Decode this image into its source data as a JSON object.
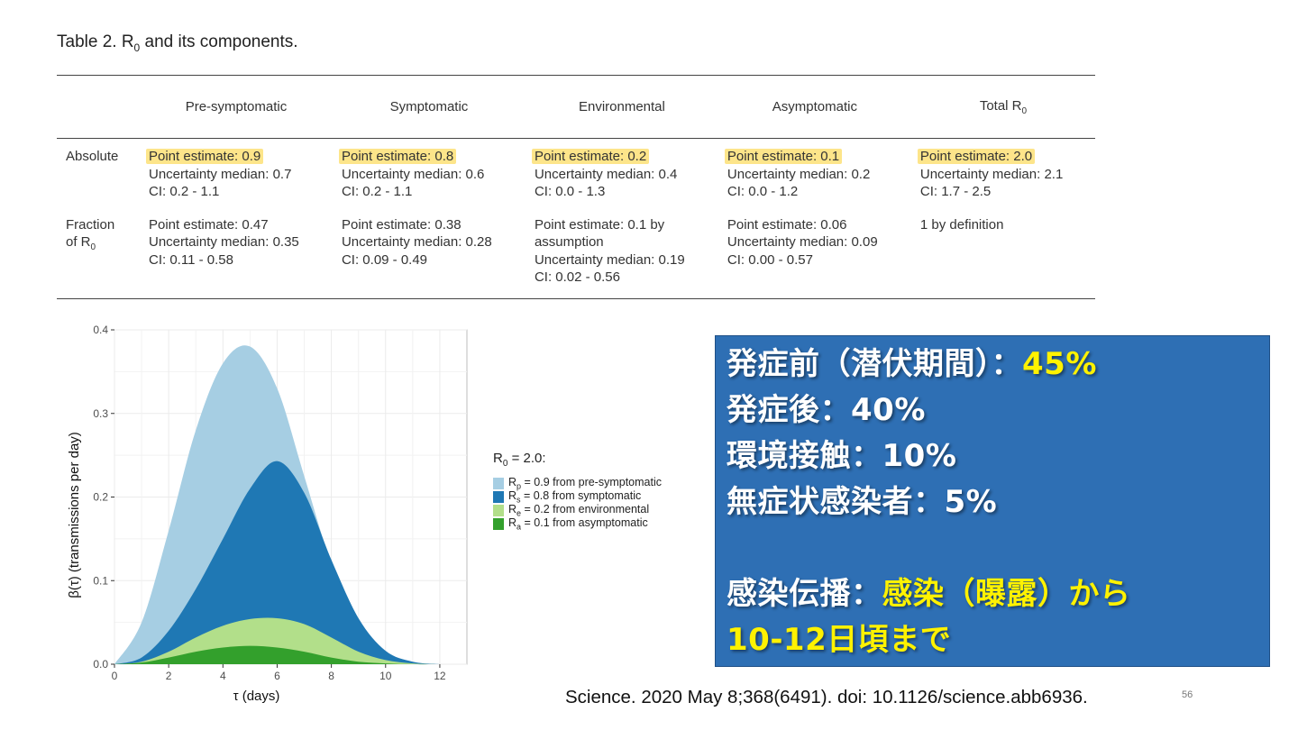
{
  "table": {
    "title_prefix": "Table 2. R",
    "title_sub": "0",
    "title_suffix": " and its components.",
    "headers": [
      "Pre-symptomatic",
      "Symptomatic",
      "Environmental",
      "Asymptomatic",
      "Total R"
    ],
    "header_total_sub": "0",
    "row_absolute_label": "Absolute",
    "row_fraction_label_1": "Fraction",
    "row_fraction_label_2a": "of R",
    "row_fraction_label_2b": "0",
    "absolute": [
      {
        "point": "Point estimate: 0.9",
        "median": "Uncertainty median: 0.7",
        "ci": "CI: 0.2 - 1.1"
      },
      {
        "point": "Point estimate: 0.8",
        "median": "Uncertainty median: 0.6",
        "ci": "CI: 0.2 - 1.1"
      },
      {
        "point": "Point estimate: 0.2",
        "median": "Uncertainty median: 0.4",
        "ci": "CI: 0.0 - 1.3"
      },
      {
        "point": "Point estimate: 0.1",
        "median": "Uncertainty median: 0.2",
        "ci": "CI: 0.0 - 1.2"
      },
      {
        "point": "Point estimate: 2.0",
        "median": "Uncertainty median: 2.1",
        "ci": "CI: 1.7 - 2.5"
      }
    ],
    "fraction": [
      [
        "Point estimate: 0.47",
        "Uncertainty median: 0.35",
        "CI: 0.11 - 0.58"
      ],
      [
        "Point estimate: 0.38",
        "Uncertainty median: 0.28",
        "CI: 0.09 - 0.49"
      ],
      [
        "Point estimate: 0.1 by",
        "assumption",
        "Uncertainty median: 0.19",
        "CI: 0.02 - 0.56"
      ],
      [
        "Point estimate: 0.06",
        "Uncertainty median: 0.09",
        "CI: 0.00 - 0.57"
      ],
      [
        "1 by definition"
      ]
    ],
    "highlight_color": "#fde58a"
  },
  "chart_data": {
    "type": "area",
    "xlabel": "τ (days)",
    "ylabel": "β(τ)  (transmissions per day)",
    "xlim": [
      0,
      13
    ],
    "ylim": [
      0,
      0.4
    ],
    "xticks": [
      0,
      2,
      4,
      6,
      8,
      10,
      12
    ],
    "yticks": [
      0.0,
      0.1,
      0.2,
      0.3,
      0.4
    ],
    "ytick_labels": [
      "0.0",
      "0.1",
      "0.2",
      "0.3",
      "0.4"
    ],
    "grid": true,
    "x": [
      0,
      1,
      2,
      3,
      4,
      5,
      6,
      7,
      8,
      9,
      10,
      11,
      12
    ],
    "series": [
      {
        "name": "R_a",
        "label_sub": "a",
        "label_text": " = 0.1 from asymptomatic",
        "color": "#33a02c",
        "cumulative": [
          0,
          0.002,
          0.008,
          0.015,
          0.02,
          0.022,
          0.02,
          0.015,
          0.008,
          0.003,
          0.001,
          0,
          0
        ]
      },
      {
        "name": "R_e",
        "label_sub": "e",
        "label_text": " = 0.2 from environmental",
        "color": "#b2df8a",
        "cumulative": [
          0,
          0.003,
          0.015,
          0.032,
          0.046,
          0.054,
          0.055,
          0.048,
          0.032,
          0.015,
          0.005,
          0.001,
          0
        ]
      },
      {
        "name": "R_s",
        "label_sub": "s",
        "label_text": " = 0.8 from symptomatic",
        "color": "#1f78b4",
        "cumulative": [
          0,
          0.008,
          0.04,
          0.09,
          0.15,
          0.21,
          0.243,
          0.205,
          0.125,
          0.055,
          0.016,
          0.003,
          0
        ]
      },
      {
        "name": "R_p",
        "label_sub": "p",
        "label_text": " = 0.9 from pre-symptomatic",
        "color": "#a6cee3",
        "cumulative": [
          0,
          0.05,
          0.16,
          0.28,
          0.36,
          0.38,
          0.33,
          0.225,
          0.12,
          0.045,
          0.013,
          0.002,
          0
        ]
      }
    ],
    "legend_title_prefix": "R",
    "legend_title_sub": "0",
    "legend_title_suffix": " = 2.0:",
    "legend_placement": "right"
  },
  "summary": {
    "line1_a": "発症前（潜伏期間）：",
    "line1_b": "45%",
    "line2": "発症後：40%",
    "line3": "環境接触：10%",
    "line4": "無症状感染者：5%",
    "line5_a": "感染伝播：",
    "line5_b": "感染（曝露）から",
    "line6": "10-12日頃まで",
    "bg_color": "#2e6fb4",
    "accent_color": "#fff200"
  },
  "citation": "Science. 2020 May 8;368(6491). doi: 10.1126/science.abb6936.",
  "page_number": "56"
}
